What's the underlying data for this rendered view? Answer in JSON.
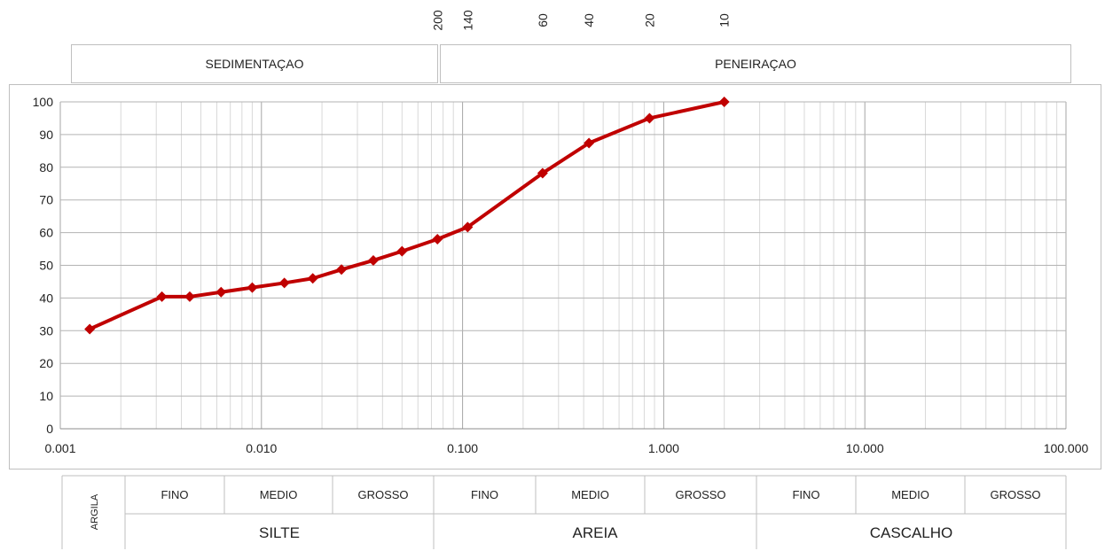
{
  "sieves": {
    "labels": [
      "200",
      "140",
      "60",
      "40",
      "20",
      "10"
    ],
    "sizes_mm": [
      0.075,
      0.106,
      0.25,
      0.425,
      0.85,
      2.0
    ]
  },
  "header": {
    "sedimentacao": "SEDIMENTAÇAO",
    "peneiracao": "PENEIRAÇAO"
  },
  "classification": {
    "argila": "ARGILA",
    "groups": [
      {
        "name": "SILTE",
        "subs": [
          "FINO",
          "MEDIO",
          "GROSSO"
        ]
      },
      {
        "name": "AREIA",
        "subs": [
          "FINO",
          "MEDIO",
          "GROSSO"
        ]
      },
      {
        "name": "CASCALHO",
        "subs": [
          "FINO",
          "MEDIO",
          "GROSSO"
        ]
      }
    ]
  },
  "chart_data": {
    "type": "line",
    "x_scale": "log",
    "xlim": [
      0.001,
      100
    ],
    "ylim": [
      0,
      100
    ],
    "x_tick_labels": [
      "0.001",
      "0.010",
      "0.100",
      "1.000",
      "10.000",
      "100.000"
    ],
    "x_ticks": [
      0.001,
      0.01,
      0.1,
      1,
      10,
      100
    ],
    "y_ticks": [
      0,
      10,
      20,
      30,
      40,
      50,
      60,
      70,
      80,
      90,
      100
    ],
    "grid": true,
    "series": [
      {
        "color": "#C00000",
        "marker": "diamond",
        "x": [
          0.0014,
          0.0032,
          0.0044,
          0.0063,
          0.009,
          0.013,
          0.018,
          0.025,
          0.036,
          0.05,
          0.075,
          0.106,
          0.25,
          0.425,
          0.85,
          2.0
        ],
        "y": [
          30.5,
          40.4,
          40.4,
          41.8,
          43.2,
          44.6,
          46.0,
          48.7,
          51.5,
          54.3,
          58.0,
          61.7,
          78.2,
          87.4,
          95.0,
          100.0
        ]
      }
    ]
  }
}
